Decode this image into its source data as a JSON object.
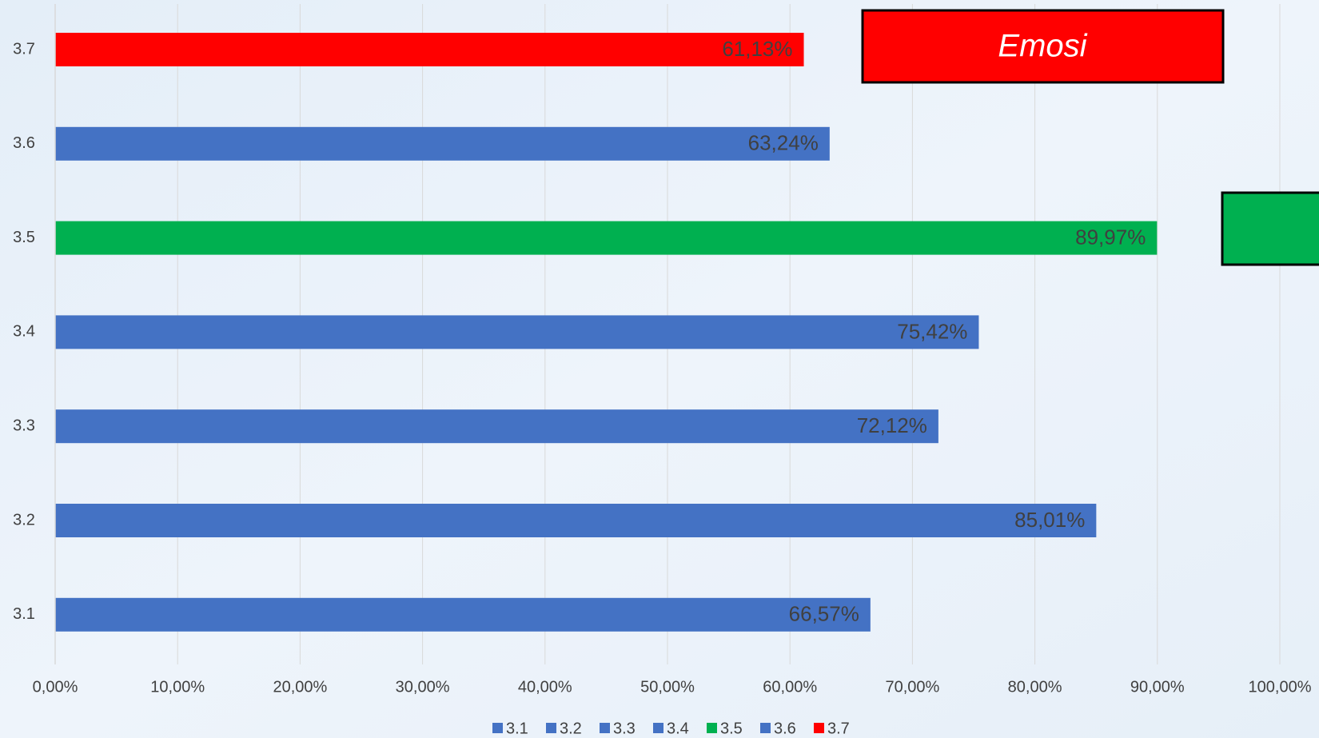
{
  "chart_data": {
    "type": "bar",
    "orientation": "horizontal",
    "categories": [
      "3.1",
      "3.2",
      "3.3",
      "3.4",
      "3.5",
      "3.6",
      "3.7"
    ],
    "series": [
      {
        "name": "3.1",
        "color": "#4472c4",
        "values": [
          66.57,
          null,
          null,
          null,
          null,
          null,
          null
        ],
        "value_labels": [
          "66,57%",
          null,
          null,
          null,
          null,
          null,
          null
        ]
      },
      {
        "name": "3.2",
        "color": "#4472c4",
        "values": [
          null,
          85.01,
          null,
          null,
          null,
          null,
          null
        ],
        "value_labels": [
          null,
          "85,01%",
          null,
          null,
          null,
          null,
          null
        ]
      },
      {
        "name": "3.3",
        "color": "#4472c4",
        "values": [
          null,
          null,
          72.12,
          null,
          null,
          null,
          null
        ],
        "value_labels": [
          null,
          null,
          "72,12%",
          null,
          null,
          null,
          null
        ]
      },
      {
        "name": "3.4",
        "color": "#4472c4",
        "values": [
          null,
          null,
          null,
          75.42,
          null,
          null,
          null
        ],
        "value_labels": [
          null,
          null,
          null,
          "75,42%",
          null,
          null,
          null
        ]
      },
      {
        "name": "3.5",
        "color": "#00b050",
        "values": [
          null,
          null,
          null,
          null,
          89.97,
          null,
          null
        ],
        "value_labels": [
          null,
          null,
          null,
          null,
          "89,97%",
          null,
          null
        ]
      },
      {
        "name": "3.6",
        "color": "#4472c4",
        "values": [
          null,
          null,
          null,
          null,
          null,
          63.24,
          null
        ],
        "value_labels": [
          null,
          null,
          null,
          null,
          null,
          "63,24%",
          null
        ]
      },
      {
        "name": "3.7",
        "color": "#ff0000",
        "values": [
          null,
          null,
          null,
          null,
          null,
          null,
          61.13
        ],
        "value_labels": [
          null,
          null,
          null,
          null,
          null,
          null,
          "61,13%"
        ]
      }
    ],
    "xlim": [
      0,
      100
    ],
    "xticks": [
      {
        "value": 0,
        "label": "0,00%"
      },
      {
        "value": 10,
        "label": "10,00%"
      },
      {
        "value": 20,
        "label": "20,00%"
      },
      {
        "value": 30,
        "label": "30,00%"
      },
      {
        "value": 40,
        "label": "40,00%"
      },
      {
        "value": 50,
        "label": "50,00%"
      },
      {
        "value": 60,
        "label": "60,00%"
      },
      {
        "value": 70,
        "label": "70,00%"
      },
      {
        "value": 80,
        "label": "80,00%"
      },
      {
        "value": 90,
        "label": "90,00%"
      },
      {
        "value": 100,
        "label": "100,00%"
      }
    ],
    "grid": true,
    "legend": "bottom",
    "annotation": "Emosi"
  }
}
